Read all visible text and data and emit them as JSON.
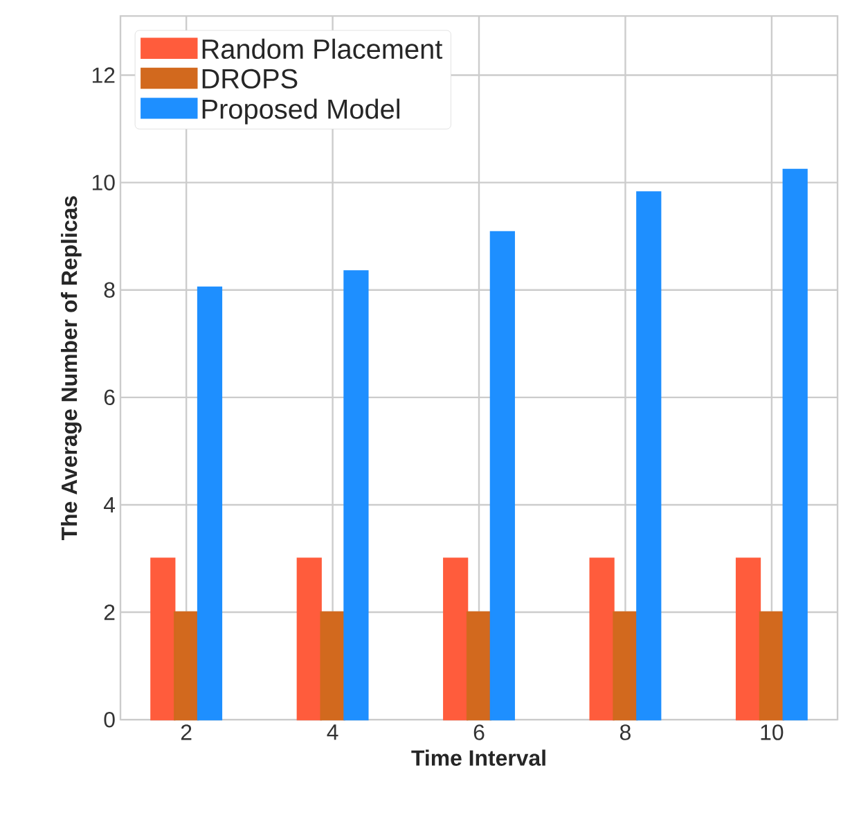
{
  "chart_data": {
    "type": "bar",
    "xlabel": "Time Interval",
    "ylabel": "The Average Number of Replicas",
    "categories": [
      "2",
      "4",
      "6",
      "8",
      "10"
    ],
    "series": [
      {
        "name": "Random Placement",
        "color": "#ff5c3c",
        "values": [
          3,
          3,
          3,
          3,
          3
        ]
      },
      {
        "name": "DROPS",
        "color": "#d2691e",
        "values": [
          2,
          2,
          2,
          2,
          2
        ]
      },
      {
        "name": "Proposed Model",
        "color": "#1e8fff",
        "values": [
          8.05,
          8.35,
          9.08,
          9.82,
          10.24
        ]
      }
    ],
    "ylim": [
      0,
      13.1
    ],
    "yticks": [
      0,
      2,
      4,
      6,
      8,
      10,
      12
    ],
    "grid": true,
    "legend": "top left"
  }
}
